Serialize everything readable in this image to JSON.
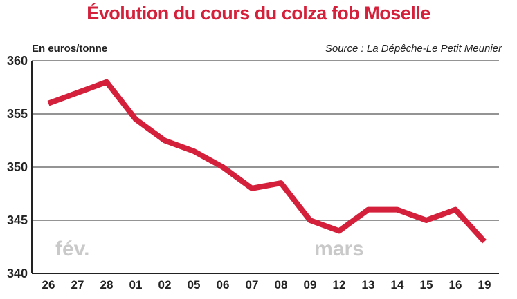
{
  "chart_data": {
    "type": "line",
    "title": "Évolution du cours du colza fob Moselle",
    "ylabel": "En euros/tonne",
    "source": "Source : La Dépêche-Le Petit Meunier",
    "categories": [
      "26",
      "27",
      "28",
      "01",
      "02",
      "05",
      "06",
      "07",
      "08",
      "09",
      "12",
      "13",
      "14",
      "15",
      "16",
      "19"
    ],
    "values": [
      356,
      357,
      358,
      354.5,
      352.5,
      351.5,
      350,
      348,
      348.5,
      345,
      344,
      346,
      346,
      345,
      346,
      343
    ],
    "ylim": [
      340,
      360
    ],
    "yticks": [
      "340",
      "345",
      "350",
      "355",
      "360"
    ],
    "month_labels": [
      {
        "text": "fév.",
        "at_category": "26"
      },
      {
        "text": "mars",
        "at_category": "12"
      }
    ],
    "line_color": "#d4203a",
    "grid": true,
    "legend": "none"
  }
}
